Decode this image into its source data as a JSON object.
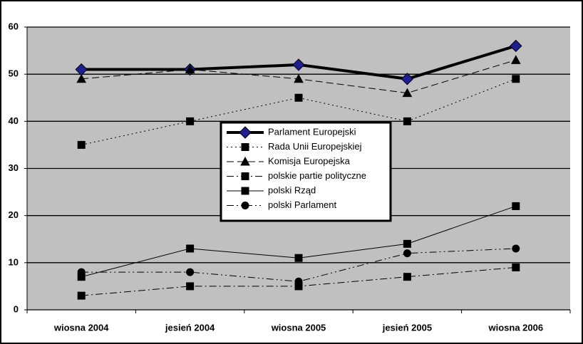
{
  "chart_data": {
    "type": "line",
    "categories": [
      "wiosna 2004",
      "jesień 2004",
      "wiosna 2005",
      "jesień 2005",
      "wiosna 2006"
    ],
    "series": [
      {
        "name": "Parlament Europejski",
        "color": "#000000",
        "marker_color": "#1f1f8f",
        "marker": "diamond",
        "linestyle": "solid",
        "linewidth": 4,
        "values": [
          51,
          51,
          52,
          49,
          56
        ]
      },
      {
        "name": "Rada Unii Europejskiej",
        "color": "#000000",
        "marker_color": "#000000",
        "marker": "square",
        "linestyle": "dotted",
        "linewidth": 1,
        "values": [
          35,
          40,
          45,
          40,
          49
        ]
      },
      {
        "name": "Komisja Europejska",
        "color": "#000000",
        "marker_color": "#000000",
        "marker": "triangle",
        "linestyle": "dashed",
        "linewidth": 1,
        "values": [
          49,
          51,
          49,
          46,
          53
        ]
      },
      {
        "name": "polskie partie polityczne",
        "color": "#000000",
        "marker_color": "#000000",
        "marker": "square",
        "linestyle": "dashdot",
        "linewidth": 1,
        "values": [
          3,
          5,
          5,
          7,
          9
        ]
      },
      {
        "name": "polski Rząd",
        "color": "#000000",
        "marker_color": "#000000",
        "marker": "square",
        "linestyle": "solid",
        "linewidth": 1,
        "values": [
          7,
          13,
          11,
          14,
          22
        ]
      },
      {
        "name": "polski Parlament",
        "color": "#000000",
        "marker_color": "#000000",
        "marker": "circle",
        "linestyle": "dashdotdot",
        "linewidth": 1,
        "values": [
          8,
          8,
          6,
          12,
          13
        ]
      }
    ],
    "ylim": [
      0,
      60
    ],
    "yticks": [
      0,
      10,
      20,
      30,
      40,
      50,
      60
    ],
    "grid": true,
    "plot_background": "#c0c0c0"
  }
}
